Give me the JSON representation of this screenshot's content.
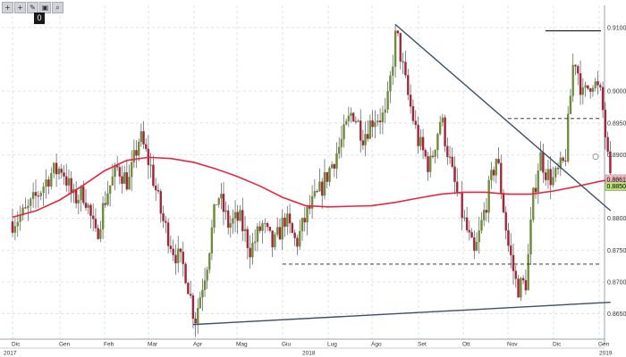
{
  "toolbar": {
    "icons": [
      "plus-icon",
      "crosshair-icon",
      "pencil-icon",
      "fit-icon",
      "zoom-icon"
    ],
    "glyphs": [
      "+",
      "+",
      "✎",
      "▣",
      "⌕"
    ],
    "badge": "0"
  },
  "colors": {
    "up": "#6e8d3a",
    "down": "#a0253a",
    "wick": "#555555",
    "moving_average": "#e8263e",
    "trendline": "#3b5068",
    "dashed": "#222222",
    "badge_ma": "#f7b7bd",
    "badge_price": "#b9e07a",
    "grid": "#dde3ea"
  },
  "chart_data": {
    "type": "candlestick",
    "ylim": [
      0.861,
      0.9135
    ],
    "y_ticks": [
      "0.91000",
      "0.90000",
      "0.89500",
      "0.89000",
      "0.88000",
      "0.87500",
      "0.87000",
      "0.86500"
    ],
    "x_ticks": [
      "Dic",
      "Gen",
      "Feb",
      "Mar",
      "Apr",
      "Mag",
      "Giu",
      "Lug",
      "Ago",
      "Set",
      "Ott",
      "Nov",
      "Dic",
      "Gen"
    ],
    "year_labels": [
      "2017",
      "2018",
      "2019"
    ],
    "badges": [
      {
        "label": "0.88614",
        "value": 0.88614,
        "role": "moving_average"
      },
      {
        "label": "0.88505",
        "value": 0.88505,
        "role": "price"
      }
    ],
    "guides": {
      "circle_level": 0.8897,
      "dashed_levels": [
        {
          "value": 0.8728,
          "from": "Giu",
          "to": "Gen"
        },
        {
          "value": 0.8957,
          "from": "Nov",
          "to": "Gen"
        }
      ],
      "solid_levels": [
        {
          "value": 0.9095,
          "from": "Nov",
          "to": "Gen"
        }
      ],
      "trendlines": [
        {
          "from": [
            3.98,
            0.8633
          ],
          "to": [
            13.25,
            0.8668
          ]
        },
        {
          "from": [
            8.5,
            0.9105
          ],
          "to": [
            13.25,
            0.8812
          ]
        }
      ]
    },
    "moving_average": [
      [
        0.0,
        0.8802
      ],
      [
        0.5,
        0.8812
      ],
      [
        1.0,
        0.8829
      ],
      [
        1.5,
        0.8851
      ],
      [
        2.0,
        0.8875
      ],
      [
        2.5,
        0.8891
      ],
      [
        3.0,
        0.8896
      ],
      [
        3.5,
        0.8894
      ],
      [
        4.0,
        0.8888
      ],
      [
        4.5,
        0.8878
      ],
      [
        5.0,
        0.8866
      ],
      [
        5.5,
        0.8851
      ],
      [
        6.0,
        0.8833
      ],
      [
        6.5,
        0.882
      ],
      [
        7.0,
        0.8818
      ],
      [
        7.5,
        0.8819
      ],
      [
        8.0,
        0.882
      ],
      [
        8.5,
        0.8825
      ],
      [
        9.0,
        0.8832
      ],
      [
        9.5,
        0.8838
      ],
      [
        10.0,
        0.8841
      ],
      [
        10.5,
        0.8841
      ],
      [
        11.0,
        0.8838
      ],
      [
        11.5,
        0.8838
      ],
      [
        12.0,
        0.8843
      ],
      [
        12.5,
        0.885
      ],
      [
        13.0,
        0.8858
      ],
      [
        13.25,
        0.8861
      ]
    ],
    "price_path": [
      [
        0.0,
        0.8795
      ],
      [
        0.3,
        0.881
      ],
      [
        0.55,
        0.884
      ],
      [
        0.8,
        0.887
      ],
      [
        1.05,
        0.888
      ],
      [
        1.3,
        0.883
      ],
      [
        1.55,
        0.884
      ],
      [
        1.8,
        0.877
      ],
      [
        2.05,
        0.884
      ],
      [
        2.3,
        0.888
      ],
      [
        2.55,
        0.8855
      ],
      [
        2.8,
        0.893
      ],
      [
        3.05,
        0.888
      ],
      [
        3.3,
        0.88
      ],
      [
        3.55,
        0.875
      ],
      [
        3.8,
        0.872
      ],
      [
        4.02,
        0.864
      ],
      [
        4.3,
        0.873
      ],
      [
        4.55,
        0.884
      ],
      [
        4.8,
        0.879
      ],
      [
        5.05,
        0.88
      ],
      [
        5.3,
        0.875
      ],
      [
        5.55,
        0.879
      ],
      [
        5.8,
        0.8755
      ],
      [
        6.05,
        0.88
      ],
      [
        6.3,
        0.876
      ],
      [
        6.55,
        0.881
      ],
      [
        6.8,
        0.884
      ],
      [
        7.05,
        0.888
      ],
      [
        7.3,
        0.892
      ],
      [
        7.55,
        0.897
      ],
      [
        7.8,
        0.893
      ],
      [
        8.05,
        0.896
      ],
      [
        8.3,
        0.896
      ],
      [
        8.52,
        0.9095
      ],
      [
        8.75,
        0.9
      ],
      [
        9.0,
        0.892
      ],
      [
        9.25,
        0.888
      ],
      [
        9.5,
        0.896
      ],
      [
        9.75,
        0.887
      ],
      [
        10.0,
        0.88
      ],
      [
        10.25,
        0.874
      ],
      [
        10.5,
        0.882
      ],
      [
        10.75,
        0.89
      ],
      [
        11.0,
        0.876
      ],
      [
        11.2,
        0.869
      ],
      [
        11.4,
        0.87
      ],
      [
        11.55,
        0.883
      ],
      [
        11.7,
        0.89
      ],
      [
        11.85,
        0.887
      ],
      [
        12.0,
        0.886
      ],
      [
        12.25,
        0.889
      ],
      [
        12.45,
        0.906
      ],
      [
        12.65,
        0.899
      ],
      [
        12.85,
        0.902
      ],
      [
        13.05,
        0.899
      ],
      [
        13.25,
        0.885
      ]
    ]
  }
}
